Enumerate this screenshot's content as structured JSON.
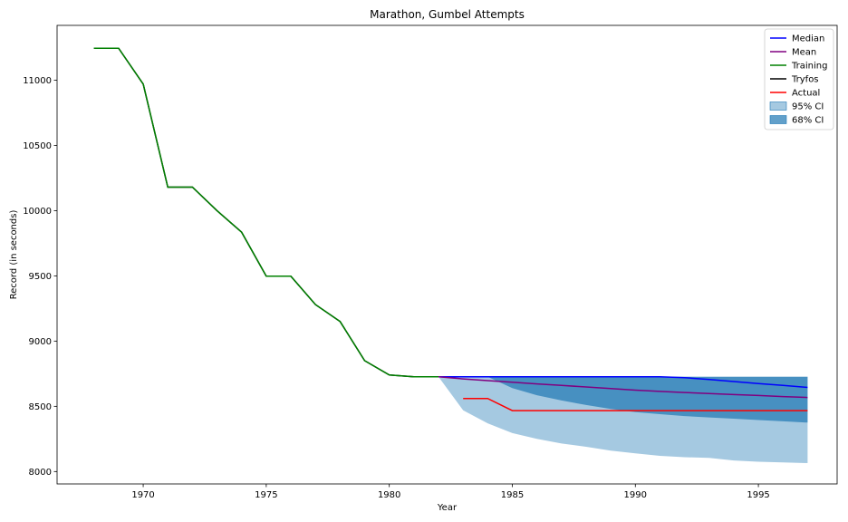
{
  "chart_data": {
    "type": "line",
    "title": "Marathon, Gumbel Attempts",
    "xlabel": "Year",
    "ylabel": "Record (in seconds)",
    "xlim": [
      1966.5,
      1998.2
    ],
    "ylim": [
      7905,
      11420
    ],
    "xticks": [
      1970,
      1975,
      1980,
      1985,
      1990,
      1995
    ],
    "yticks": [
      8000,
      8500,
      9000,
      9500,
      10000,
      10500,
      11000
    ],
    "grid": false,
    "legend_position": "top-right",
    "series": [
      {
        "name": "Median",
        "color": "#0000ff",
        "x": [
          1982,
          1983,
          1984,
          1985,
          1986,
          1987,
          1988,
          1989,
          1990,
          1991,
          1992,
          1993,
          1994,
          1995,
          1996,
          1997
        ],
        "y": [
          8727,
          8727,
          8727,
          8727,
          8727,
          8727,
          8727,
          8727,
          8727,
          8727,
          8720,
          8705,
          8690,
          8675,
          8660,
          8645
        ]
      },
      {
        "name": "Mean",
        "color": "#800080",
        "x": [
          1982,
          1983,
          1984,
          1985,
          1986,
          1987,
          1988,
          1989,
          1990,
          1991,
          1992,
          1993,
          1994,
          1995,
          1996,
          1997
        ],
        "y": [
          8727,
          8710,
          8697,
          8685,
          8672,
          8660,
          8648,
          8636,
          8624,
          8614,
          8606,
          8598,
          8590,
          8583,
          8575,
          8568
        ]
      },
      {
        "name": "Training",
        "color": "#008000",
        "x": [
          1968,
          1969,
          1970,
          1971,
          1972,
          1973,
          1974,
          1975,
          1976,
          1977,
          1978,
          1979,
          1980,
          1981,
          1982
        ],
        "y": [
          11245,
          11245,
          10970,
          10180,
          10180,
          10000,
          9835,
          9497,
          9497,
          9280,
          9150,
          8850,
          8740,
          8727,
          8727
        ]
      },
      {
        "name": "Tryfos",
        "color": "#000000",
        "x": [
          1968,
          1969,
          1970,
          1971,
          1972,
          1973,
          1974,
          1975,
          1976,
          1977,
          1978,
          1979,
          1980,
          1981,
          1982
        ],
        "y": [
          11245,
          11245,
          10970,
          10180,
          10180,
          10000,
          9835,
          9497,
          9497,
          9280,
          9150,
          8850,
          8740,
          8727,
          8727
        ]
      },
      {
        "name": "Actual",
        "color": "#ff0000",
        "x": [
          1983,
          1984,
          1985,
          1986,
          1987,
          1988,
          1989,
          1990,
          1991,
          1992,
          1993,
          1994,
          1995,
          1996,
          1997
        ],
        "y": [
          8560,
          8560,
          8467,
          8467,
          8467,
          8467,
          8467,
          8467,
          8467,
          8467,
          8467,
          8467,
          8467,
          8467,
          8467
        ]
      }
    ],
    "bands": [
      {
        "name": "95% CI",
        "color": "#1f77b4",
        "opacity": 0.4,
        "x": [
          1982,
          1983,
          1984,
          1985,
          1986,
          1987,
          1988,
          1989,
          1990,
          1991,
          1992,
          1993,
          1994,
          1995,
          1996,
          1997
        ],
        "lower": [
          8727,
          8470,
          8370,
          8295,
          8250,
          8215,
          8190,
          8160,
          8140,
          8120,
          8110,
          8105,
          8085,
          8075,
          8070,
          8065
        ],
        "upper": [
          8727,
          8727,
          8727,
          8727,
          8727,
          8727,
          8727,
          8727,
          8727,
          8727,
          8727,
          8727,
          8727,
          8727,
          8727,
          8727
        ]
      },
      {
        "name": "68% CI",
        "color": "#1f77b4",
        "opacity": 0.7,
        "x": [
          1984,
          1985,
          1986,
          1987,
          1988,
          1989,
          1990,
          1991,
          1992,
          1993,
          1994,
          1995,
          1996,
          1997
        ],
        "lower": [
          8727,
          8640,
          8585,
          8545,
          8510,
          8480,
          8455,
          8440,
          8425,
          8415,
          8405,
          8395,
          8385,
          8375
        ],
        "upper": [
          8727,
          8727,
          8727,
          8727,
          8727,
          8727,
          8727,
          8727,
          8727,
          8727,
          8727,
          8727,
          8727,
          8727
        ]
      }
    ]
  }
}
